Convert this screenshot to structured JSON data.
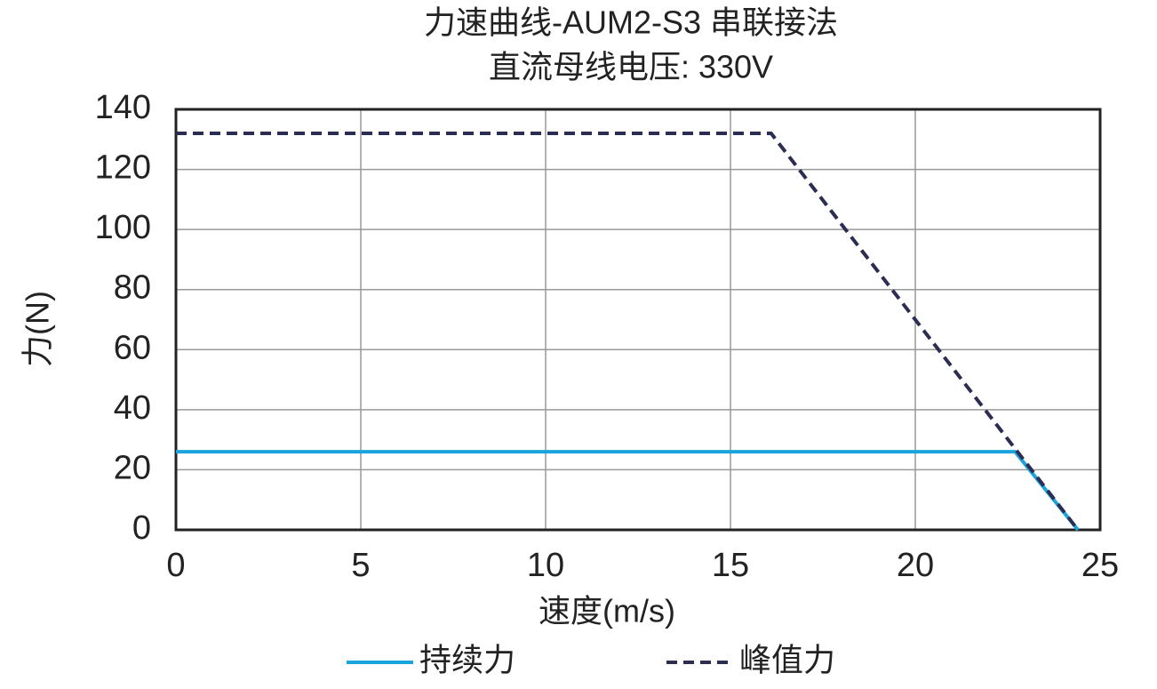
{
  "chart_data": {
    "type": "line",
    "title": "力速曲线-AUM2-S3 串联接法",
    "subtitle": "直流母线电压: 330V",
    "x_label": "速度(m/s)",
    "y_label": "力(N)",
    "xlim": [
      0,
      25
    ],
    "xticks": [
      0,
      5,
      10,
      15,
      20,
      25
    ],
    "ylim": [
      0,
      140
    ],
    "yticks": [
      0,
      20,
      40,
      60,
      80,
      100,
      120,
      140
    ],
    "grid": true,
    "legend": "bottom",
    "series": [
      {
        "name": "持续力",
        "color": "#1aa3dc",
        "style": "solid",
        "x": [
          0,
          22.7,
          24.4
        ],
        "values": [
          26,
          26,
          0
        ]
      },
      {
        "name": "峰值力",
        "color": "#2b2d52",
        "style": "dashed",
        "x": [
          0,
          16.1,
          24.4
        ],
        "values": [
          132,
          132,
          0
        ]
      }
    ]
  }
}
